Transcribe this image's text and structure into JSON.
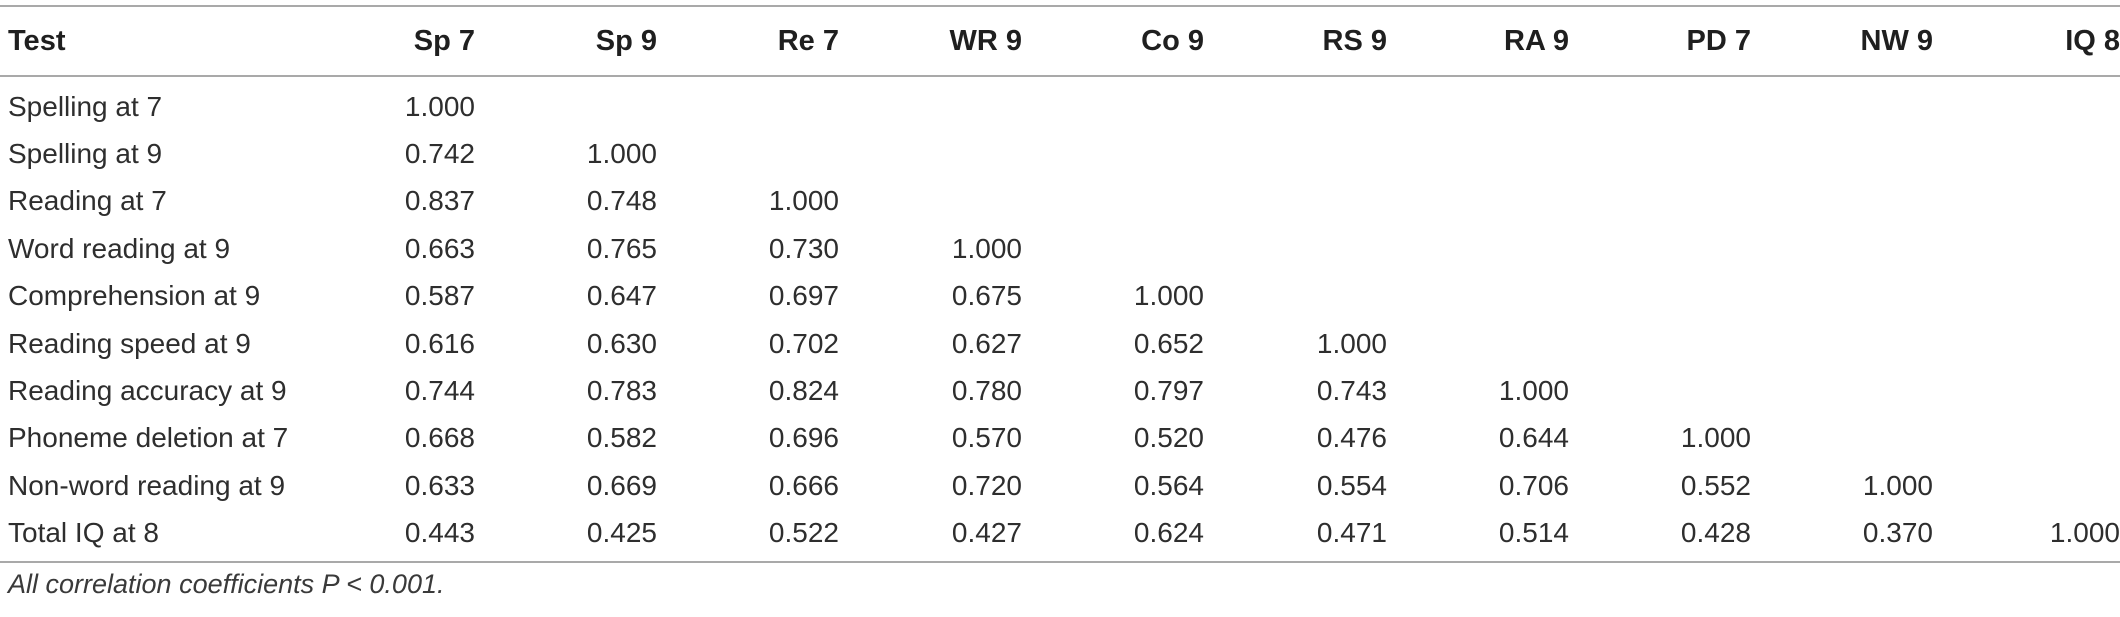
{
  "table": {
    "headers": [
      "Test",
      "Sp 7",
      "Sp 9",
      "Re 7",
      "WR 9",
      "Co 9",
      "RS 9",
      "RA 9",
      "PD 7",
      "NW 9",
      "IQ 8"
    ],
    "rows": [
      {
        "label": "Spelling at 7",
        "values": [
          "1.000",
          "",
          "",
          "",
          "",
          "",
          "",
          "",
          "",
          ""
        ]
      },
      {
        "label": "Spelling at 9",
        "values": [
          "0.742",
          "1.000",
          "",
          "",
          "",
          "",
          "",
          "",
          "",
          ""
        ]
      },
      {
        "label": "Reading at 7",
        "values": [
          "0.837",
          "0.748",
          "1.000",
          "",
          "",
          "",
          "",
          "",
          "",
          ""
        ]
      },
      {
        "label": "Word reading at 9",
        "values": [
          "0.663",
          "0.765",
          "0.730",
          "1.000",
          "",
          "",
          "",
          "",
          "",
          ""
        ]
      },
      {
        "label": "Comprehension at 9",
        "values": [
          "0.587",
          "0.647",
          "0.697",
          "0.675",
          "1.000",
          "",
          "",
          "",
          "",
          ""
        ]
      },
      {
        "label": "Reading speed at 9",
        "values": [
          "0.616",
          "0.630",
          "0.702",
          "0.627",
          "0.652",
          "1.000",
          "",
          "",
          "",
          ""
        ]
      },
      {
        "label": "Reading accuracy at 9",
        "values": [
          "0.744",
          "0.783",
          "0.824",
          "0.780",
          "0.797",
          "0.743",
          "1.000",
          "",
          "",
          ""
        ]
      },
      {
        "label": "Phoneme deletion at 7",
        "values": [
          "0.668",
          "0.582",
          "0.696",
          "0.570",
          "0.520",
          "0.476",
          "0.644",
          "1.000",
          "",
          ""
        ]
      },
      {
        "label": "Non-word reading at 9",
        "values": [
          "0.633",
          "0.669",
          "0.666",
          "0.720",
          "0.564",
          "0.554",
          "0.706",
          "0.552",
          "1.000",
          ""
        ]
      },
      {
        "label": "Total IQ at 8",
        "values": [
          "0.443",
          "0.425",
          "0.522",
          "0.427",
          "0.624",
          "0.471",
          "0.514",
          "0.428",
          "0.370",
          "1.000"
        ]
      }
    ],
    "footnote": "All correlation coefficients P < 0.001."
  }
}
